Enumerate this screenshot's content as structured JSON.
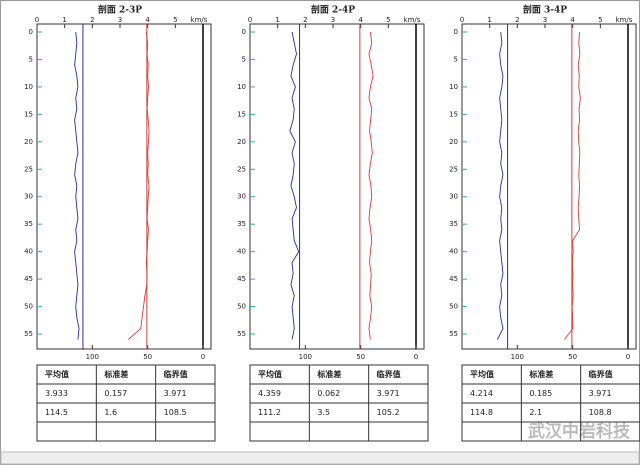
{
  "chart_data": [
    {
      "type": "line",
      "title": "剖面 2-3P",
      "x_unit": "km/s",
      "x": [
        0,
        2,
        4,
        6,
        8,
        10,
        12,
        14,
        16,
        18,
        20,
        22,
        24,
        26,
        28,
        30,
        32,
        34,
        36,
        38,
        40,
        42,
        44,
        46,
        48,
        50,
        52,
        54,
        56
      ],
      "ylim": [
        0,
        57
      ],
      "yticks": [
        0,
        5,
        10,
        15,
        20,
        25,
        30,
        35,
        40,
        45,
        50,
        55
      ],
      "xlim": [
        0,
        6
      ],
      "xticks": [
        0,
        1,
        2,
        3,
        4,
        5
      ],
      "x2lim": [
        150,
        0
      ],
      "x2ticks": [
        100,
        50,
        0
      ],
      "series": [
        {
          "color": "#d83a3a",
          "values": [
            3.95,
            4.0,
            3.98,
            4.02,
            4.0,
            4.03,
            4.0,
            3.98,
            4.02,
            4.05,
            4.03,
            4.0,
            4.02,
            4.0,
            4.05,
            4.02,
            4.0,
            3.98,
            4.03,
            4.0,
            3.98,
            3.95,
            3.98,
            3.97,
            3.9,
            3.85,
            3.8,
            3.75,
            3.3
          ]
        },
        {
          "color": "#2a2aa0",
          "axis": "x2",
          "values": [
            115,
            114,
            115,
            116,
            114,
            113,
            115,
            114,
            116,
            115,
            114,
            113,
            115,
            116,
            114,
            115,
            114,
            113,
            115,
            114,
            116,
            115,
            114,
            113,
            114,
            115,
            114,
            112,
            113
          ]
        }
      ],
      "table": {
        "header": [
          "平均值",
          "标准差",
          "临界值"
        ],
        "rows": [
          [
            3.933,
            0.157,
            3.971
          ],
          [
            114.5,
            1.6,
            108.5
          ]
        ]
      }
    },
    {
      "type": "line",
      "title": "剖面 2-4P",
      "x_unit": "km/s",
      "x": [
        0,
        2,
        4,
        6,
        8,
        10,
        12,
        14,
        16,
        18,
        20,
        22,
        24,
        26,
        28,
        30,
        32,
        34,
        36,
        38,
        40,
        42,
        44,
        46,
        48,
        50,
        52,
        54,
        56
      ],
      "ylim": [
        0,
        57
      ],
      "yticks": [
        0,
        5,
        10,
        15,
        20,
        25,
        30,
        35,
        40,
        45,
        50,
        55
      ],
      "xlim": [
        0,
        6
      ],
      "xticks": [
        0,
        1,
        2,
        3,
        4,
        5
      ],
      "x2lim": [
        150,
        0
      ],
      "x2ticks": [
        100,
        50,
        0
      ],
      "series": [
        {
          "color": "#d83a3a",
          "values": [
            4.35,
            4.4,
            4.3,
            4.38,
            4.45,
            4.35,
            4.3,
            4.4,
            4.36,
            4.32,
            4.38,
            4.42,
            4.35,
            4.3,
            4.37,
            4.4,
            4.34,
            4.3,
            4.36,
            4.4,
            4.35,
            4.32,
            4.38,
            4.36,
            4.33,
            4.4,
            4.36,
            4.3,
            4.35
          ]
        },
        {
          "color": "#2a2aa0",
          "axis": "x2",
          "values": [
            112,
            110,
            108,
            111,
            113,
            109,
            112,
            110,
            111,
            114,
            109,
            112,
            110,
            111,
            113,
            110,
            108,
            112,
            111,
            110,
            106,
            112,
            111,
            113,
            110,
            112,
            111,
            110,
            112
          ]
        }
      ],
      "table": {
        "header": [
          "平均值",
          "标准差",
          "临界值"
        ],
        "rows": [
          [
            4.359,
            0.062,
            3.971
          ],
          [
            111.2,
            3.5,
            105.2
          ]
        ]
      }
    },
    {
      "type": "line",
      "title": "剖面 3-4P",
      "x_unit": "km/s",
      "x": [
        0,
        2,
        4,
        6,
        8,
        10,
        12,
        14,
        16,
        18,
        20,
        22,
        24,
        26,
        28,
        30,
        32,
        34,
        36,
        38,
        40,
        42,
        44,
        46,
        48,
        50,
        52,
        54,
        56
      ],
      "ylim": [
        0,
        57
      ],
      "yticks": [
        0,
        5,
        10,
        15,
        20,
        25,
        30,
        35,
        40,
        45,
        50,
        55
      ],
      "xlim": [
        0,
        6
      ],
      "xticks": [
        0,
        1,
        2,
        3,
        4,
        5
      ],
      "x2lim": [
        150,
        0
      ],
      "x2ticks": [
        100,
        50,
        0
      ],
      "series": [
        {
          "color": "#d83a3a",
          "values": [
            4.25,
            4.22,
            4.26,
            4.2,
            4.24,
            4.22,
            4.28,
            4.23,
            4.25,
            4.2,
            4.22,
            4.26,
            4.24,
            4.22,
            4.25,
            4.23,
            4.2,
            4.22,
            4.25,
            4.0,
            4.02,
            3.99,
            4.01,
            4.0,
            4.02,
            3.98,
            4.0,
            4.01,
            3.7
          ]
        },
        {
          "color": "#2a2aa0",
          "axis": "x2",
          "values": [
            115,
            114,
            116,
            115,
            113,
            114,
            116,
            115,
            114,
            115,
            116,
            114,
            115,
            113,
            115,
            116,
            114,
            115,
            114,
            116,
            115,
            114,
            113,
            115,
            114,
            116,
            115,
            113,
            118
          ]
        }
      ],
      "table": {
        "header": [
          "平均值",
          "标准差",
          "临界值"
        ],
        "rows": [
          [
            4.214,
            0.185,
            3.971
          ],
          [
            114.8,
            2.1,
            108.8
          ]
        ]
      }
    }
  ],
  "watermark": "武汉中岩科技"
}
